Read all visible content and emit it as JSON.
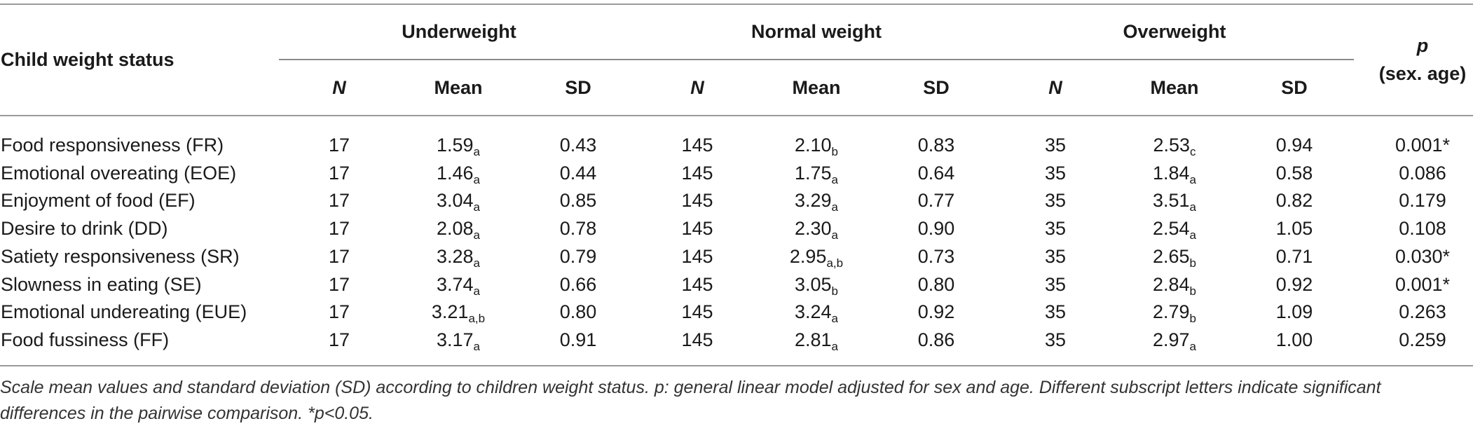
{
  "header": {
    "row_label": "Child weight status",
    "groups": [
      "Underweight",
      "Normal weight",
      "Overweight"
    ],
    "sub_columns": [
      "N",
      "Mean",
      "SD"
    ],
    "p_label": "p",
    "p_sub_label": "(sex. age)"
  },
  "rows": [
    {
      "label": "Food responsiveness (FR)",
      "under": {
        "n": "17",
        "mean": "1.59",
        "sub": "a",
        "sd": "0.43"
      },
      "normal": {
        "n": "145",
        "mean": "2.10",
        "sub": "b",
        "sd": "0.83"
      },
      "over": {
        "n": "35",
        "mean": "2.53",
        "sub": "c",
        "sd": "0.94"
      },
      "p": "0.001*"
    },
    {
      "label": "Emotional overeating (EOE)",
      "under": {
        "n": "17",
        "mean": "1.46",
        "sub": "a",
        "sd": "0.44"
      },
      "normal": {
        "n": "145",
        "mean": "1.75",
        "sub": "a",
        "sd": "0.64"
      },
      "over": {
        "n": "35",
        "mean": "1.84",
        "sub": "a",
        "sd": "0.58"
      },
      "p": "0.086"
    },
    {
      "label": "Enjoyment of food (EF)",
      "under": {
        "n": "17",
        "mean": "3.04",
        "sub": "a",
        "sd": "0.85"
      },
      "normal": {
        "n": "145",
        "mean": "3.29",
        "sub": "a",
        "sd": "0.77"
      },
      "over": {
        "n": "35",
        "mean": "3.51",
        "sub": "a",
        "sd": "0.82"
      },
      "p": "0.179"
    },
    {
      "label": "Desire to drink (DD)",
      "under": {
        "n": "17",
        "mean": "2.08",
        "sub": "a",
        "sd": "0.78"
      },
      "normal": {
        "n": "145",
        "mean": "2.30",
        "sub": "a",
        "sd": "0.90"
      },
      "over": {
        "n": "35",
        "mean": "2.54",
        "sub": "a",
        "sd": "1.05"
      },
      "p": "0.108"
    },
    {
      "label": "Satiety responsiveness (SR)",
      "under": {
        "n": "17",
        "mean": "3.28",
        "sub": "a",
        "sd": "0.79"
      },
      "normal": {
        "n": "145",
        "mean": "2.95",
        "sub": "a,b",
        "sd": "0.73"
      },
      "over": {
        "n": "35",
        "mean": "2.65",
        "sub": "b",
        "sd": "0.71"
      },
      "p": "0.030*"
    },
    {
      "label": "Slowness in eating (SE)",
      "under": {
        "n": "17",
        "mean": "3.74",
        "sub": "a",
        "sd": "0.66"
      },
      "normal": {
        "n": "145",
        "mean": "3.05",
        "sub": "b",
        "sd": "0.80"
      },
      "over": {
        "n": "35",
        "mean": "2.84",
        "sub": "b",
        "sd": "0.92"
      },
      "p": "0.001*"
    },
    {
      "label": "Emotional undereating (EUE)",
      "under": {
        "n": "17",
        "mean": "3.21",
        "sub": "a,b",
        "sd": "0.80"
      },
      "normal": {
        "n": "145",
        "mean": "3.24",
        "sub": "a",
        "sd": "0.92"
      },
      "over": {
        "n": "35",
        "mean": "2.79",
        "sub": "b",
        "sd": "1.09"
      },
      "p": "0.263"
    },
    {
      "label": "Food fussiness (FF)",
      "under": {
        "n": "17",
        "mean": "3.17",
        "sub": "a",
        "sd": "0.91"
      },
      "normal": {
        "n": "145",
        "mean": "2.81",
        "sub": "a",
        "sd": "0.86"
      },
      "over": {
        "n": "35",
        "mean": "2.97",
        "sub": "a",
        "sd": "1.00"
      },
      "p": "0.259"
    }
  ],
  "footnote": "Scale mean values and standard deviation (SD) according to children weight status. p: general linear model adjusted for sex and age. Different subscript letters indicate significant differences in the pairwise comparison.  *p<0.05."
}
